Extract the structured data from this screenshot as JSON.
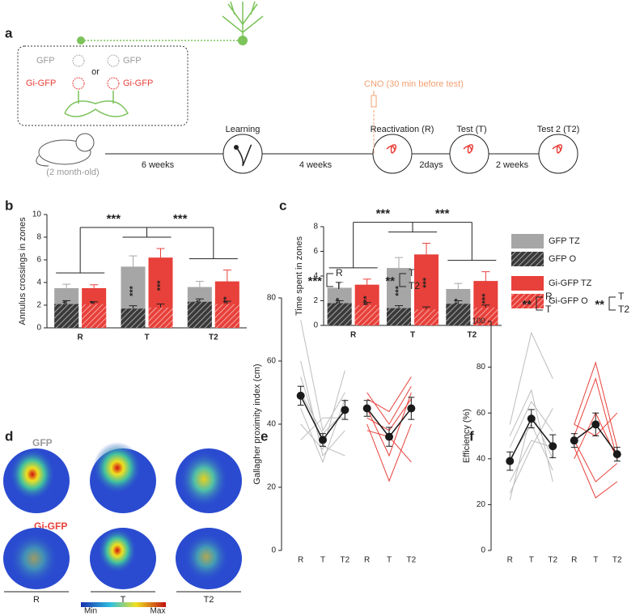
{
  "panel_labels": [
    "a",
    "b",
    "c",
    "d",
    "e",
    "f"
  ],
  "panel_a": {
    "groups": [
      "GFP",
      "GFP",
      "Gi-GFP",
      "Gi-GFP"
    ],
    "or": "or",
    "age": "(2 month-old)",
    "intervals": [
      "6 weeks",
      "4 weeks",
      "2days",
      "2 weeks"
    ],
    "stages": [
      "Learning",
      "Reactivation (R)",
      "Test (T)",
      "Test 2 (T2)"
    ],
    "cno": "CNO (30 min before test)"
  },
  "chart_data": [
    {
      "type": "bar",
      "ylabel": "Annulus crossings in zones",
      "categories": [
        "R",
        "T",
        "T2"
      ],
      "ylim": [
        0,
        10
      ],
      "yticks": [
        0,
        2,
        4,
        6,
        8,
        10
      ],
      "series": [
        {
          "color": "#a6a6a6",
          "values": [
            3.5,
            5.4,
            3.6
          ],
          "errors": [
            0.35,
            0.95,
            0.5
          ]
        },
        {
          "color": "#3a3a3a",
          "hatch": true,
          "values": [
            2.1,
            1.7,
            2.3
          ],
          "errors": [
            0.3,
            0.25,
            0.25
          ]
        },
        {
          "color": "#e8403a",
          "values": [
            3.5,
            6.2,
            4.1
          ],
          "errors": [
            0.3,
            0.8,
            1.0
          ]
        },
        {
          "color": "#e8403a",
          "hatch": true,
          "values": [
            2.1,
            1.8,
            2.1
          ],
          "errors": [
            0.2,
            0.3,
            0.25
          ]
        }
      ],
      "bar_stars": [
        [
          "**",
          "**"
        ],
        [
          "***",
          "***"
        ],
        [
          "**",
          "**"
        ]
      ],
      "brackets": [
        "***",
        "***"
      ]
    },
    {
      "type": "bar",
      "ylabel": "Time spent in zones",
      "categories": [
        "R",
        "T",
        "T2"
      ],
      "ylim": [
        0,
        8
      ],
      "yticks": [
        0,
        2,
        4,
        6,
        8
      ],
      "legend": "right",
      "series": [
        {
          "name": "GFP TZ",
          "color": "#a6a6a6",
          "values": [
            3.05,
            4.65,
            2.95
          ],
          "errors": [
            0.45,
            0.85,
            0.45
          ]
        },
        {
          "name": "GFP O",
          "color": "#3a3a3a",
          "hatch": true,
          "values": [
            1.8,
            1.4,
            1.75
          ],
          "errors": [
            0.2,
            0.2,
            0.25
          ]
        },
        {
          "name": "Gi-GFP TZ",
          "color": "#e8403a",
          "values": [
            3.3,
            5.75,
            3.6
          ],
          "errors": [
            0.45,
            0.9,
            0.75
          ]
        },
        {
          "name": "Gi-GFP O",
          "color": "#e8403a",
          "hatch": true,
          "values": [
            1.65,
            1.3,
            1.45
          ],
          "errors": [
            0.2,
            0.2,
            0.2
          ]
        }
      ],
      "bar_stars": [
        [
          "***",
          "***"
        ],
        [
          "***",
          "***"
        ],
        [
          "***",
          "***"
        ]
      ],
      "brackets": [
        "***",
        "***"
      ]
    },
    {
      "type": "line",
      "ylabel": "Gallagher proximity index (cm)",
      "categories": [
        "R",
        "T",
        "T2",
        "R",
        "T",
        "T2"
      ],
      "ylim": [
        0,
        80
      ],
      "yticks": [
        0,
        20,
        40,
        60,
        80
      ],
      "comparisons": [
        {
          "stars": "***",
          "pair": [
            "R",
            "T"
          ]
        },
        {
          "stars": "**",
          "pair": [
            "T",
            "T2"
          ]
        }
      ],
      "series": [
        {
          "color": "#bdbdbd",
          "values": [
            73,
            38,
            50,
            null,
            null,
            null
          ]
        },
        {
          "color": "#bdbdbd",
          "values": [
            60,
            30,
            38,
            null,
            null,
            null
          ]
        },
        {
          "color": "#bdbdbd",
          "values": [
            55,
            33,
            30,
            null,
            null,
            null
          ]
        },
        {
          "color": "#bdbdbd",
          "values": [
            45,
            28,
            48,
            null,
            null,
            null
          ]
        },
        {
          "color": "#bdbdbd",
          "values": [
            40,
            32,
            57,
            null,
            null,
            null
          ]
        },
        {
          "color": "#bdbdbd",
          "values": [
            35,
            42,
            42,
            null,
            null,
            null
          ]
        },
        {
          "color": "#bdbdbd",
          "values": [
            50,
            37,
            44,
            null,
            null,
            null
          ]
        },
        {
          "color": "#e8403a",
          "values": [
            null,
            null,
            null,
            45,
            30,
            50
          ]
        },
        {
          "color": "#e8403a",
          "values": [
            null,
            null,
            null,
            50,
            40,
            52
          ]
        },
        {
          "color": "#e8403a",
          "values": [
            null,
            null,
            null,
            40,
            22,
            40
          ]
        },
        {
          "color": "#e8403a",
          "values": [
            null,
            null,
            null,
            48,
            44,
            55
          ]
        },
        {
          "color": "#e8403a",
          "values": [
            null,
            null,
            null,
            38,
            36,
            28
          ]
        },
        {
          "color": "#e8403a",
          "values": [
            null,
            null,
            null,
            42,
            38,
            48
          ]
        },
        {
          "color": "#1a1a1a",
          "marker": "circle",
          "values": [
            49,
            35,
            44.5,
            null,
            null,
            null
          ],
          "errors": [
            3,
            2,
            3,
            null,
            null,
            null
          ]
        },
        {
          "color": "#1a1a1a",
          "marker": "circle",
          "values": [
            null,
            null,
            null,
            45,
            36,
            45
          ],
          "errors": [
            null,
            null,
            null,
            2.5,
            3,
            3.5
          ]
        }
      ]
    },
    {
      "type": "line",
      "ylabel": "Efficiency (%)",
      "categories": [
        "R",
        "T",
        "T2",
        "R",
        "T",
        "T2"
      ],
      "ylim": [
        0,
        100
      ],
      "yticks": [
        0,
        20,
        40,
        60,
        80,
        100
      ],
      "comparisons": [
        {
          "stars": "**",
          "pair": [
            "R",
            "T"
          ]
        },
        {
          "stars": "**",
          "pair": [
            "T",
            "T2"
          ]
        }
      ],
      "series": [
        {
          "color": "#bdbdbd",
          "values": [
            55,
            95,
            75,
            null,
            null,
            null
          ]
        },
        {
          "color": "#bdbdbd",
          "values": [
            22,
            60,
            40,
            null,
            null,
            null
          ]
        },
        {
          "color": "#bdbdbd",
          "values": [
            30,
            48,
            45,
            null,
            null,
            null
          ]
        },
        {
          "color": "#bdbdbd",
          "values": [
            50,
            70,
            30,
            null,
            null,
            null
          ]
        },
        {
          "color": "#bdbdbd",
          "values": [
            40,
            55,
            35,
            null,
            null,
            null
          ]
        },
        {
          "color": "#bdbdbd",
          "values": [
            25,
            45,
            62,
            null,
            null,
            null
          ]
        },
        {
          "color": "#bdbdbd",
          "values": [
            45,
            65,
            52,
            null,
            null,
            null
          ]
        },
        {
          "color": "#e8403a",
          "values": [
            null,
            null,
            null,
            55,
            82,
            45
          ]
        },
        {
          "color": "#e8403a",
          "values": [
            null,
            null,
            null,
            50,
            75,
            40
          ]
        },
        {
          "color": "#e8403a",
          "values": [
            null,
            null,
            null,
            45,
            23,
            30
          ]
        },
        {
          "color": "#e8403a",
          "values": [
            null,
            null,
            null,
            55,
            50,
            60
          ]
        },
        {
          "color": "#e8403a",
          "values": [
            null,
            null,
            null,
            40,
            60,
            40
          ]
        },
        {
          "color": "#e8403a",
          "values": [
            null,
            null,
            null,
            48,
            30,
            38
          ]
        },
        {
          "color": "#1a1a1a",
          "marker": "circle",
          "values": [
            39,
            57.5,
            45.5,
            null,
            null,
            null
          ],
          "errors": [
            4,
            4,
            5,
            null,
            null,
            null
          ]
        },
        {
          "color": "#1a1a1a",
          "marker": "circle",
          "values": [
            null,
            null,
            null,
            48,
            55,
            42
          ],
          "errors": [
            null,
            null,
            null,
            3,
            5,
            3
          ]
        }
      ]
    }
  ],
  "panel_d": {
    "rows": [
      "GFP",
      "Gi-GFP"
    ],
    "columns": [
      "R",
      "T",
      "T2"
    ],
    "colorbar": [
      "Min",
      "Max"
    ]
  }
}
